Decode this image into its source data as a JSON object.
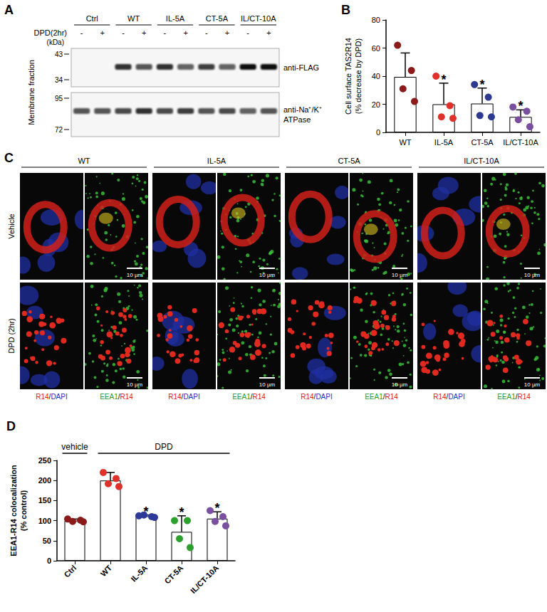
{
  "chart_data": [
    {
      "panel_label": "B",
      "type": "bar",
      "ylabel": "Cell surface TAS2R14\n(% decrease by DPD)",
      "categories": [
        "WT",
        "IL-5A",
        "CT-5A",
        "IL/CT-10A"
      ],
      "values": [
        39.5,
        20,
        20.5,
        11
      ],
      "error": [
        17,
        15,
        11,
        5
      ],
      "points": [
        [
          62,
          44,
          31,
          22
        ],
        [
          40,
          19,
          11,
          10
        ],
        [
          34,
          25,
          12,
          11
        ],
        [
          18,
          15,
          9,
          4
        ]
      ],
      "color": "#ffffff",
      "colors": [
        "#8b1a1a",
        "#e0302a",
        "#2e3a8f",
        "#7b4fa0"
      ],
      "annotations": [
        null,
        "*",
        "*",
        "*"
      ],
      "ylim": [
        0,
        80
      ],
      "yticks": [
        0,
        20,
        40,
        60,
        80
      ],
      "grid": false
    },
    {
      "panel_label": "D",
      "type": "bar",
      "ylabel": "EEA1-R14 colocalization\n(% control)",
      "categories": [
        "Ctrl",
        "WT",
        "IL-5A",
        "CT-5A",
        "IL/CT-10A"
      ],
      "values": [
        100,
        200,
        111,
        72,
        105
      ],
      "error": [
        4,
        20,
        3,
        40,
        17
      ],
      "points": [
        [
          104,
          101,
          98,
          97
        ],
        [
          220,
          205,
          192,
          185
        ],
        [
          112,
          110,
          114,
          108
        ],
        [
          100,
          100,
          55,
          33
        ],
        [
          125,
          110,
          98,
          87
        ]
      ],
      "color": "#ffffff",
      "colors": [
        "#8b1a1a",
        "#e0302a",
        "#2e3a9a",
        "#2ca02c",
        "#7b4fa0"
      ],
      "annotations": [
        null,
        null,
        "*",
        "*",
        "*"
      ],
      "group_labels": [
        {
          "text": "vehicle",
          "from": "Ctrl",
          "to": "Ctrl"
        },
        {
          "text": "DPD",
          "from": "WT",
          "to": "IL/CT-10A"
        }
      ],
      "ylim": [
        0,
        250
      ],
      "yticks": [
        0,
        50,
        100,
        150,
        200,
        250
      ],
      "grid": false
    }
  ],
  "blot": {
    "panel_label": "A",
    "treatment_label": "DPD(2hr)",
    "groups": [
      "Ctrl",
      "WT",
      "IL-5A",
      "CT-5A",
      "IL/CT-10A"
    ],
    "lanes": [
      "-",
      "+",
      "-",
      "+",
      "-",
      "+",
      "-",
      "+",
      "-",
      "+"
    ],
    "ylabel": "Membrane fraction",
    "unit_label": "(kDa)",
    "blots": [
      {
        "antibody": [
          "anti-FLAG"
        ],
        "markers": [
          43,
          34
        ],
        "band_intensity": [
          0,
          0,
          0.85,
          0.7,
          0.85,
          0.65,
          0.8,
          0.65,
          1,
          1
        ]
      },
      {
        "antibody": [
          "anti-Na⁺/K⁺",
          "ATPase"
        ],
        "markers": [
          95,
          72
        ],
        "band_intensity": [
          0.7,
          0.7,
          0.75,
          0.85,
          0.75,
          0.8,
          0.7,
          0.75,
          0.65,
          0.7
        ]
      }
    ]
  },
  "micrographs": {
    "panel_label": "C",
    "columns": [
      "WT",
      "IL-5A",
      "CT-5A",
      "IL/CT-10A"
    ],
    "rows": [
      "Vehicle",
      "DPD (2hr)"
    ],
    "channels": [
      [
        {
          "text": "R14",
          "color": "#e0201c"
        },
        {
          "text": "/",
          "color": "#000000"
        },
        {
          "text": "DAPI",
          "color": "#2030c0"
        }
      ],
      [
        {
          "text": "EEA1",
          "color": "#2a9a2a"
        },
        {
          "text": "/",
          "color": "#000000"
        },
        {
          "text": "R14",
          "color": "#e0201c"
        }
      ]
    ],
    "scale_bar": "10 µm"
  }
}
